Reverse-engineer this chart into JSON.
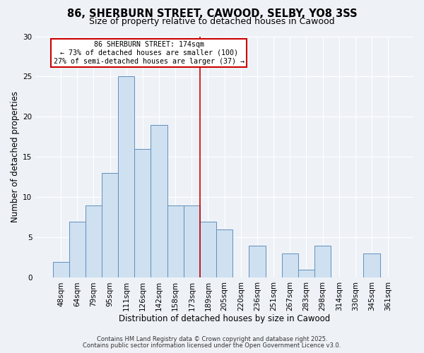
{
  "title": "86, SHERBURN STREET, CAWOOD, SELBY, YO8 3SS",
  "subtitle": "Size of property relative to detached houses in Cawood",
  "bar_labels": [
    "48sqm",
    "64sqm",
    "79sqm",
    "95sqm",
    "111sqm",
    "126sqm",
    "142sqm",
    "158sqm",
    "173sqm",
    "189sqm",
    "205sqm",
    "220sqm",
    "236sqm",
    "251sqm",
    "267sqm",
    "283sqm",
    "298sqm",
    "314sqm",
    "330sqm",
    "345sqm",
    "361sqm"
  ],
  "bar_values": [
    2,
    7,
    9,
    13,
    25,
    16,
    19,
    9,
    9,
    7,
    6,
    0,
    4,
    0,
    3,
    1,
    4,
    0,
    0,
    3,
    0
  ],
  "bar_color": "#cfe0f0",
  "bar_edge_color": "#6090c0",
  "xlabel": "Distribution of detached houses by size in Cawood",
  "ylabel": "Number of detached properties",
  "ylim": [
    0,
    30
  ],
  "yticks": [
    0,
    5,
    10,
    15,
    20,
    25,
    30
  ],
  "vline_x": 8.5,
  "vline_color": "#cc0000",
  "annotation_title": "86 SHERBURN STREET: 174sqm",
  "annotation_line1": "← 73% of detached houses are smaller (100)",
  "annotation_line2": "27% of semi-detached houses are larger (37) →",
  "annotation_box_color": "#cc0000",
  "footer_line1": "Contains HM Land Registry data © Crown copyright and database right 2025.",
  "footer_line2": "Contains public sector information licensed under the Open Government Licence v3.0.",
  "background_color": "#eef2f7",
  "grid_color": "#ffffff",
  "title_fontsize": 10.5,
  "subtitle_fontsize": 9,
  "axis_label_fontsize": 8.5,
  "tick_fontsize": 7.5,
  "footer_fontsize": 6.0
}
